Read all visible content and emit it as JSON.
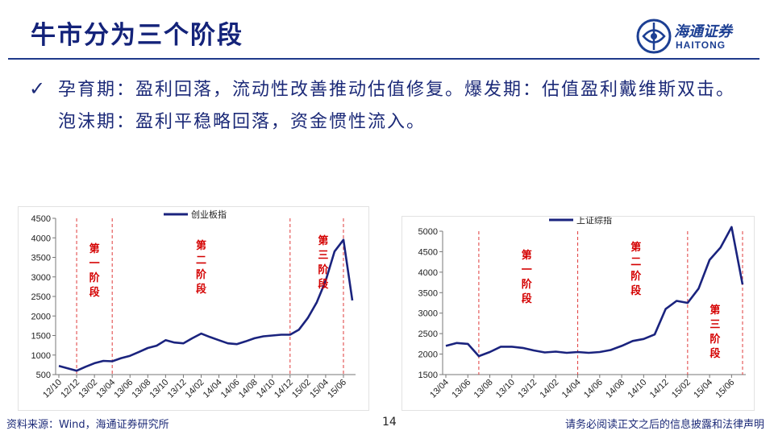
{
  "slide": {
    "title": "牛市分为三个阶段",
    "bullet_symbol": "✓",
    "body": "孕育期：盈利回落，流动性改善推动估值修复。爆发期：估值盈利戴维斯双击。泡沫期：盈利平稳略回落，资金惯性流入。",
    "page_number": "14",
    "source": "资料来源：Wind，海通证券研究所",
    "disclaimer": "请务必阅读正文之后的信息披露和法律声明"
  },
  "logo": {
    "name_cn": "海通证券",
    "name_en": "HAITONG",
    "color": "#1c3f93"
  },
  "colors": {
    "title": "#14237a",
    "line": "#1a237e",
    "divider": "#e03b3b",
    "stage_label": "#d40000"
  },
  "chart_data": [
    {
      "type": "line",
      "legend": "创业板指",
      "legend_position": "top",
      "ylim": [
        500,
        4500
      ],
      "yticks": [
        500,
        1000,
        1500,
        2000,
        2500,
        3000,
        3500,
        4000,
        4500
      ],
      "xticks": [
        "12/10",
        "12/12",
        "13/02",
        "13/04",
        "13/06",
        "13/08",
        "13/10",
        "13/12",
        "14/02",
        "14/04",
        "14/06",
        "14/08",
        "14/10",
        "14/12",
        "15/02",
        "15/04",
        "15/06"
      ],
      "x": [
        "12/10",
        "12/11",
        "12/12",
        "13/01",
        "13/02",
        "13/03",
        "13/04",
        "13/05",
        "13/06",
        "13/07",
        "13/08",
        "13/09",
        "13/10",
        "13/11",
        "13/12",
        "14/01",
        "14/02",
        "14/03",
        "14/04",
        "14/05",
        "14/06",
        "14/07",
        "14/08",
        "14/09",
        "14/10",
        "14/11",
        "14/12",
        "15/01",
        "15/02",
        "15/03",
        "15/04",
        "15/05",
        "15/06",
        "15/07"
      ],
      "values": [
        720,
        660,
        600,
        700,
        790,
        850,
        840,
        920,
        980,
        1080,
        1180,
        1240,
        1380,
        1320,
        1300,
        1430,
        1550,
        1460,
        1380,
        1300,
        1280,
        1350,
        1430,
        1480,
        1500,
        1520,
        1520,
        1650,
        1950,
        2350,
        2900,
        3650,
        3950,
        2400
      ],
      "stage_dividers": [
        "12/12",
        "13/04",
        "14/12",
        "15/06"
      ],
      "stage_labels": [
        "第一阶段",
        "第二阶段",
        "第三阶段"
      ],
      "grid": false
    },
    {
      "type": "line",
      "legend": "上证综指",
      "legend_position": "top",
      "ylim": [
        1500,
        5000
      ],
      "yticks": [
        1500,
        2000,
        2500,
        3000,
        3500,
        4000,
        4500,
        5000
      ],
      "xticks": [
        "13/04",
        "13/06",
        "13/08",
        "13/10",
        "13/12",
        "14/02",
        "14/04",
        "14/06",
        "14/08",
        "14/10",
        "14/12",
        "15/02",
        "15/04",
        "15/06"
      ],
      "x": [
        "13/04",
        "13/05",
        "13/06",
        "13/07",
        "13/08",
        "13/09",
        "13/10",
        "13/11",
        "13/12",
        "14/01",
        "14/02",
        "14/03",
        "14/04",
        "14/05",
        "14/06",
        "14/07",
        "14/08",
        "14/09",
        "14/10",
        "14/11",
        "14/12",
        "15/01",
        "15/02",
        "15/03",
        "15/04",
        "15/05",
        "15/06",
        "15/07"
      ],
      "values": [
        2200,
        2270,
        2250,
        1950,
        2050,
        2180,
        2180,
        2150,
        2090,
        2040,
        2060,
        2030,
        2050,
        2030,
        2050,
        2100,
        2200,
        2320,
        2370,
        2480,
        3100,
        3300,
        3250,
        3600,
        4300,
        4600,
        5100,
        3700
      ],
      "stage_dividers": [
        "13/07",
        "14/04",
        "15/02",
        "15/07"
      ],
      "stage_labels": [
        "第一阶段",
        "第二阶段",
        "第三阶段"
      ],
      "grid": false
    }
  ]
}
